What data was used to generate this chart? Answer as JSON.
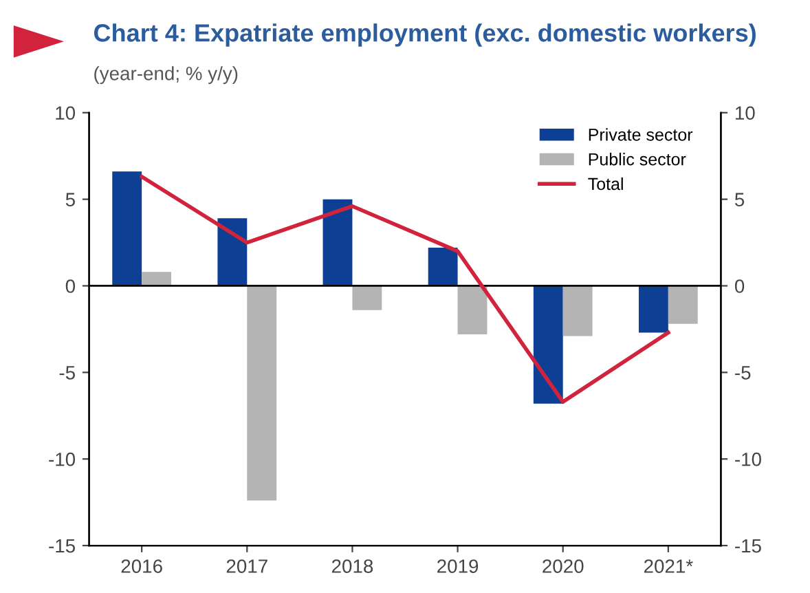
{
  "chart_data": {
    "type": "bar",
    "title": "Chart 4: Expatriate employment (exc. domestic workers)",
    "subtitle": "(year-end; % y/y)",
    "categories": [
      "2016",
      "2017",
      "2018",
      "2019",
      "2020",
      "2021*"
    ],
    "series": [
      {
        "name": "Private sector",
        "color": "#0d3f94",
        "values": [
          6.6,
          3.9,
          5.0,
          2.2,
          -6.8,
          -2.7
        ]
      },
      {
        "name": "Public sector",
        "color": "#b4b4b4",
        "values": [
          0.8,
          -12.4,
          -1.4,
          -2.8,
          -2.9,
          -2.2
        ]
      },
      {
        "name": "Total",
        "type": "line",
        "color": "#d2233c",
        "values": [
          6.3,
          2.5,
          4.6,
          2.0,
          -6.7,
          -2.7
        ]
      }
    ],
    "ylim": [
      -15,
      10
    ],
    "yticks": [
      -15,
      -10,
      -5,
      0,
      5,
      10
    ],
    "y2lim": [
      -15,
      10
    ],
    "y2ticks": [
      -15,
      -10,
      -5,
      0,
      5,
      10
    ],
    "ref_lines": [
      {
        "axis": "y",
        "value": 0,
        "color": "#000000"
      }
    ],
    "grid": false,
    "legend": "top right"
  }
}
